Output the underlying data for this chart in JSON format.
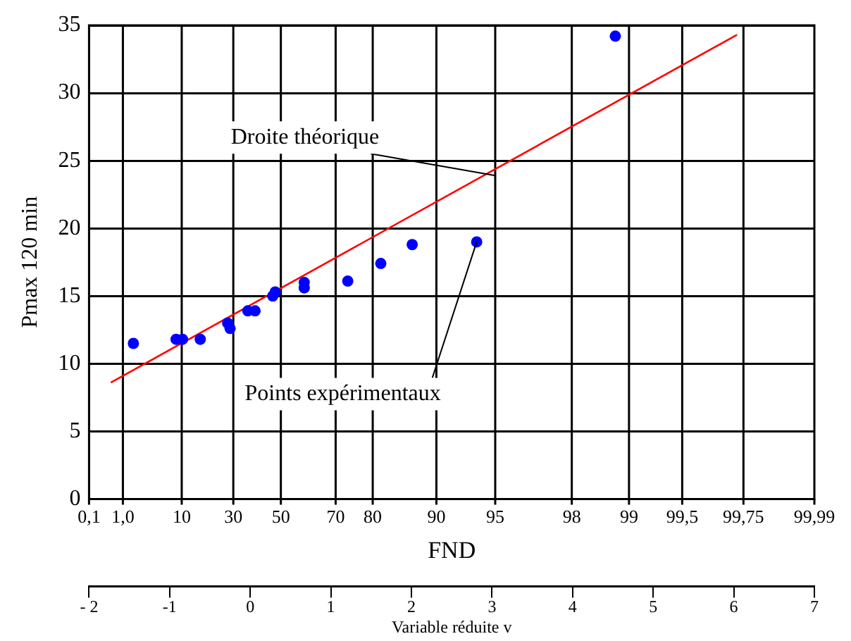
{
  "chart_data": {
    "type": "scatter",
    "xlabel": "Variable réduite v",
    "ylabel": "Pmax 120 min",
    "xlim": [
      -2,
      7
    ],
    "xticks": [
      {
        "value": -2,
        "label": "- 2"
      },
      -1,
      0,
      1,
      2,
      3,
      4,
      5,
      6,
      7
    ],
    "ylim": [
      0,
      35
    ],
    "yticks": [
      0,
      5,
      10,
      15,
      20,
      25,
      30,
      35
    ],
    "grid": "y",
    "legend": false,
    "ref_lines": [
      {
        "axis": "x",
        "value": -1.58,
        "color": "#000000"
      },
      {
        "axis": "x",
        "value": -0.85,
        "color": "#000000"
      },
      {
        "axis": "x",
        "value": -0.21,
        "color": "#000000"
      },
      {
        "axis": "x",
        "value": 0.38,
        "color": "#000000"
      },
      {
        "axis": "x",
        "value": 1.06,
        "color": "#000000"
      },
      {
        "axis": "x",
        "value": 1.52,
        "color": "#000000"
      },
      {
        "axis": "x",
        "value": 2.31,
        "color": "#000000"
      },
      {
        "axis": "x",
        "value": 3.04,
        "color": "#000000"
      },
      {
        "axis": "x",
        "value": 3.99,
        "color": "#000000"
      },
      {
        "axis": "x",
        "value": 4.7,
        "color": "#000000"
      },
      {
        "axis": "x",
        "value": 5.36,
        "color": "#000000"
      },
      {
        "axis": "x",
        "value": 6.12,
        "color": "#000000"
      }
    ],
    "annotations": [
      {
        "text": "Droite théorique",
        "x": 3.04,
        "y": 23.9
      },
      {
        "text": "Points expérimentaux",
        "x": 2.81,
        "y": 19.0
      },
      "0,1",
      "1,0",
      "10",
      "30",
      "50",
      "70",
      "80",
      "90",
      "95",
      "98",
      "99",
      "99,5",
      "99,75",
      "99,99",
      "FND"
    ],
    "series": [
      {
        "color": "#0000ff",
        "marker": "circle",
        "x": [
          -1.45,
          -0.92,
          -0.84,
          -0.62,
          -0.28,
          -0.25,
          -0.03,
          0.06,
          0.28,
          0.31,
          0.67,
          0.67,
          1.21,
          1.62,
          2.01,
          2.81,
          4.53
        ],
        "values": [
          11.5,
          11.8,
          11.8,
          11.8,
          13.0,
          12.6,
          13.9,
          13.9,
          15.0,
          15.3,
          15.6,
          16.0,
          16.1,
          17.4,
          18.8,
          19.0,
          34.2
        ]
      },
      {
        "type": "line",
        "color": "#ff0000",
        "marker": "none",
        "x": [
          -1.73,
          6.04
        ],
        "values": [
          8.6,
          34.3
        ]
      }
    ]
  }
}
